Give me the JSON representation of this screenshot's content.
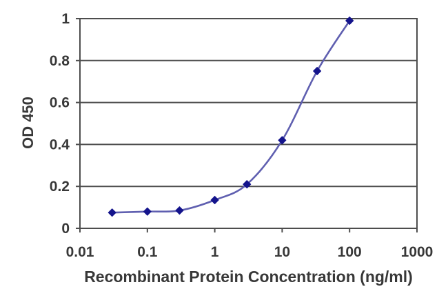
{
  "chart_data": {
    "type": "line",
    "title": "",
    "xlabel": "Recombinant Protein Concentration (ng/ml)",
    "ylabel": "OD 450",
    "x_scale": "log",
    "y_scale": "linear",
    "xlim": [
      0.01,
      1000
    ],
    "ylim": [
      0,
      1
    ],
    "x_ticks": [
      0.01,
      0.1,
      1,
      10,
      100,
      1000
    ],
    "x_tick_labels": [
      "0.01",
      "0.1",
      "1",
      "10",
      "100",
      "1000"
    ],
    "y_ticks": [
      0,
      0.2,
      0.4,
      0.6,
      0.8,
      1
    ],
    "y_tick_labels": [
      "0",
      "0.2",
      "0.4",
      "0.6",
      "0.8",
      "1"
    ],
    "grid": "horizontal-only",
    "legend_position": "none",
    "marker_shape": "diamond",
    "line_style": "smooth",
    "series": [
      {
        "x": [
          0.03,
          0.1,
          0.3,
          1,
          3,
          10,
          33,
          100
        ],
        "y": [
          0.075,
          0.08,
          0.085,
          0.135,
          0.21,
          0.42,
          0.75,
          0.99
        ]
      }
    ],
    "colors": {
      "line": "#5f5fb0",
      "marker": "#14148c",
      "grid": "#4d4d4d",
      "axis": "#4d4d4d",
      "text": "#383838",
      "background": "#ffffff"
    }
  }
}
